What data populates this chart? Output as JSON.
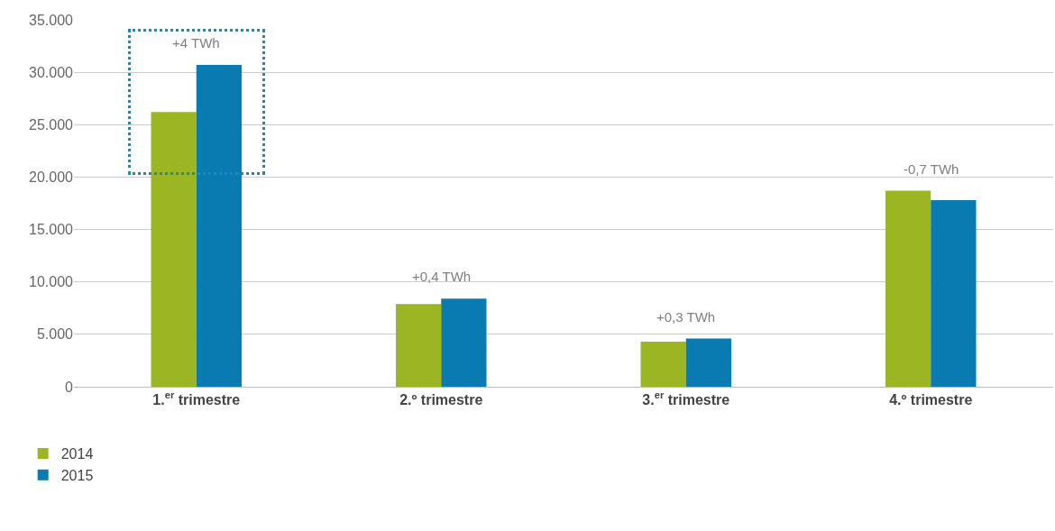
{
  "chart_data": {
    "type": "bar",
    "categories": [
      "1.$^{er}$ trimestre",
      "2.º trimestre",
      "3.$^{er}$ trimestre",
      "4.º trimestre"
    ],
    "series": [
      {
        "name": "2014",
        "color": "#9bb523",
        "values": [
          26200,
          7900,
          4300,
          18700
        ]
      },
      {
        "name": "2015",
        "color": "#0a7bb0",
        "values": [
          30700,
          8400,
          4600,
          17800
        ]
      }
    ],
    "ylim": [
      0,
      35000
    ],
    "yticks": [
      {
        "value": 0,
        "label": "0"
      },
      {
        "value": 5000,
        "label": "5.000"
      },
      {
        "value": 10000,
        "label": "10.000"
      },
      {
        "value": 15000,
        "label": "15.000"
      },
      {
        "value": 20000,
        "label": "20.000"
      },
      {
        "value": 25000,
        "label": "25.000"
      },
      {
        "value": 30000,
        "label": "30.000"
      },
      {
        "value": 35000,
        "label": "35.000"
      }
    ],
    "annotations": [
      "+4 TWh",
      "+0,4 TWh",
      "+0,3 TWh",
      "-0,7 TWh"
    ],
    "grid": "y",
    "legend": "bottom left"
  }
}
